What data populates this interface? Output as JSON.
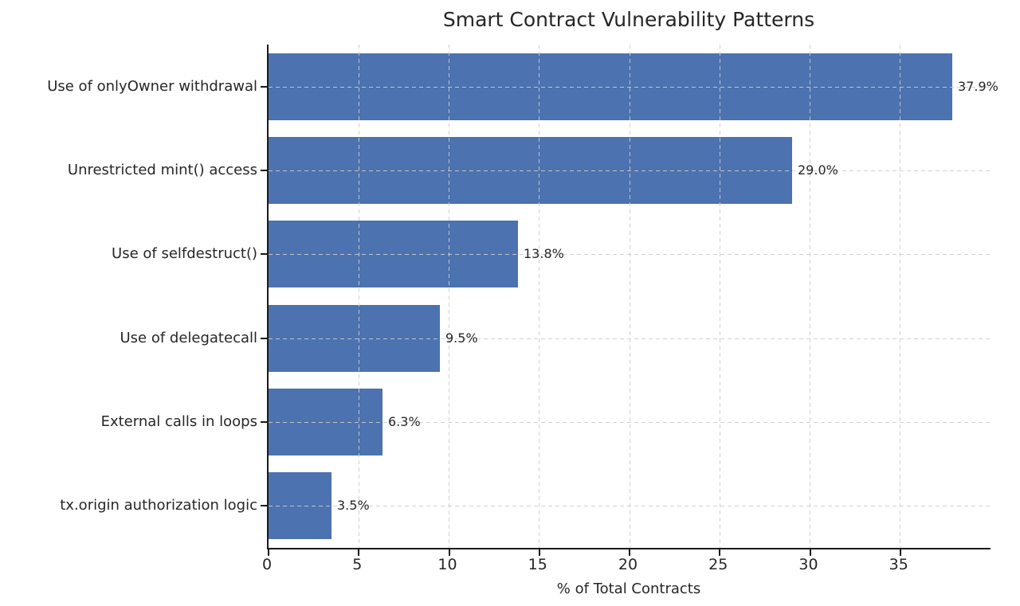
{
  "chart_data": {
    "type": "bar",
    "orientation": "horizontal",
    "title": "Smart Contract Vulnerability Patterns",
    "xlabel": "% of Total Contracts",
    "ylabel": "",
    "categories": [
      "Use of onlyOwner withdrawal",
      "Unrestricted mint() access",
      "Use of selfdestruct()",
      "Use of delegatecall",
      "External calls in loops",
      "tx.origin authorization logic"
    ],
    "values": [
      37.9,
      29.0,
      13.8,
      9.5,
      6.3,
      3.5
    ],
    "value_labels": [
      "37.9%",
      "29.0%",
      "13.8%",
      "9.5%",
      "6.3%",
      "3.5%"
    ],
    "xticks": [
      0,
      5,
      10,
      15,
      20,
      25,
      30,
      35
    ],
    "xlim": [
      0,
      40
    ],
    "bar_height_fraction": 0.8,
    "bar_color": "#4C72B0",
    "grid": true,
    "grid_style": "dashed",
    "grid_color": "#cdcdcd",
    "spine_color": "#1a1a1a",
    "text_color": "#262626",
    "background": "#ffffff",
    "legend": null
  }
}
